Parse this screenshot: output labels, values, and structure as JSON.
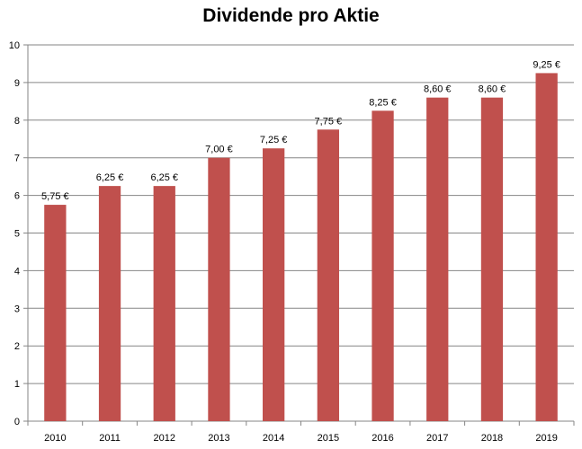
{
  "chart_data": {
    "type": "bar",
    "title": "Dividende pro Aktie",
    "categories": [
      "2010",
      "2011",
      "2012",
      "2013",
      "2014",
      "2015",
      "2016",
      "2017",
      "2018",
      "2019"
    ],
    "values": [
      5.75,
      6.25,
      6.25,
      7.0,
      7.25,
      7.75,
      8.25,
      8.6,
      8.6,
      9.25
    ],
    "data_labels": [
      "5,75 €",
      "6,25 €",
      "6,25 €",
      "7,00 €",
      "7,25 €",
      "7,75 €",
      "8,25 €",
      "8,60 €",
      "8,60 €",
      "9,25 €"
    ],
    "y_ticks": [
      "0",
      "1",
      "2",
      "3",
      "4",
      "5",
      "6",
      "7",
      "8",
      "9",
      "10"
    ],
    "ylim": [
      0,
      10
    ],
    "xlabel": "",
    "ylabel": "",
    "grid": "horizontal",
    "legend": "none",
    "bar_color": "#c0504d",
    "grid_color": "#868686",
    "axis_color": "#868686"
  }
}
